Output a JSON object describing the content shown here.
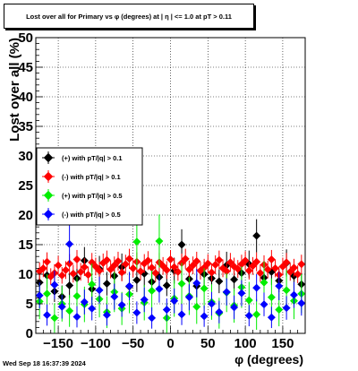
{
  "title": "Lost over all for Primary vs φ (degrees) at | η | <= 1.0 at pT > 0.11",
  "timestamp": "Wed Sep 18 16:37:39 2024",
  "chart_data": {
    "type": "scatter",
    "xlabel": "φ (degrees)",
    "ylabel": "Lost over all (%)",
    "xlim": [
      -180,
      180
    ],
    "ylim": [
      0,
      50
    ],
    "x_ticks": [
      -150,
      -100,
      -50,
      0,
      50,
      100,
      150
    ],
    "y_ticks": [
      0,
      5,
      10,
      15,
      20,
      25,
      30,
      35,
      40,
      45,
      50
    ],
    "grid": true,
    "legend_position": "middle-left",
    "series": [
      {
        "name": "(+) with pT/|q| > 0.1",
        "color": "#000000",
        "marker": "diamond",
        "points": [
          [
            -175,
            8.6,
            2.0
          ],
          [
            -165,
            9.8,
            2.2
          ],
          [
            -155,
            7.1,
            1.8
          ],
          [
            -145,
            6.2,
            1.9
          ],
          [
            -135,
            8.1,
            2.1
          ],
          [
            -125,
            9.3,
            2.0
          ],
          [
            -115,
            12.3,
            2.3
          ],
          [
            -105,
            7.5,
            1.9
          ],
          [
            -95,
            10.9,
            2.2
          ],
          [
            -85,
            8.4,
            2.0
          ],
          [
            -75,
            9.7,
            2.1
          ],
          [
            -65,
            11.2,
            2.3
          ],
          [
            -55,
            7.9,
            1.9
          ],
          [
            -45,
            9.0,
            2.0
          ],
          [
            -35,
            10.1,
            2.2
          ],
          [
            -25,
            8.7,
            2.0
          ],
          [
            -15,
            9.5,
            2.1
          ],
          [
            -5,
            8.1,
            1.8
          ],
          [
            5,
            10.6,
            2.2
          ],
          [
            15,
            15.0,
            2.6
          ],
          [
            25,
            9.2,
            2.0
          ],
          [
            35,
            8.0,
            1.9
          ],
          [
            45,
            10.0,
            2.1
          ],
          [
            55,
            9.3,
            2.0
          ],
          [
            65,
            8.8,
            2.0
          ],
          [
            75,
            11.5,
            2.3
          ],
          [
            85,
            9.1,
            2.0
          ],
          [
            95,
            10.2,
            2.1
          ],
          [
            105,
            11.7,
            2.3
          ],
          [
            115,
            16.5,
            2.8
          ],
          [
            125,
            9.4,
            2.0
          ],
          [
            135,
            10.4,
            2.2
          ],
          [
            145,
            8.9,
            2.0
          ],
          [
            155,
            11.9,
            2.3
          ],
          [
            165,
            9.7,
            2.1
          ],
          [
            175,
            8.3,
            1.9
          ]
        ]
      },
      {
        "name": "(-) with pT/|q| > 0.1",
        "color": "#ff0000",
        "marker": "diamond",
        "points": [
          [
            -175,
            10.5,
            1.5
          ],
          [
            -170,
            11.0,
            1.5
          ],
          [
            -165,
            12.1,
            1.6
          ],
          [
            -160,
            9.6,
            1.4
          ],
          [
            -155,
            10.2,
            1.5
          ],
          [
            -150,
            11.5,
            1.6
          ],
          [
            -145,
            9.8,
            1.4
          ],
          [
            -140,
            10.7,
            1.5
          ],
          [
            -135,
            11.8,
            1.6
          ],
          [
            -130,
            10.1,
            1.5
          ],
          [
            -125,
            12.5,
            1.6
          ],
          [
            -120,
            10.4,
            1.5
          ],
          [
            -115,
            11.2,
            1.5
          ],
          [
            -110,
            9.9,
            1.4
          ],
          [
            -105,
            12.0,
            1.6
          ],
          [
            -100,
            11.3,
            1.5
          ],
          [
            -95,
            10.6,
            1.5
          ],
          [
            -90,
            11.9,
            1.6
          ],
          [
            -85,
            12.4,
            1.6
          ],
          [
            -80,
            10.8,
            1.5
          ],
          [
            -75,
            11.5,
            1.5
          ],
          [
            -70,
            12.2,
            1.6
          ],
          [
            -65,
            10.3,
            1.5
          ],
          [
            -60,
            11.7,
            1.6
          ],
          [
            -55,
            12.6,
            1.7
          ],
          [
            -50,
            11.0,
            1.5
          ],
          [
            -45,
            12.1,
            1.6
          ],
          [
            -40,
            10.5,
            1.5
          ],
          [
            -35,
            11.8,
            1.6
          ],
          [
            -30,
            12.3,
            1.6
          ],
          [
            -25,
            11.1,
            1.5
          ],
          [
            -20,
            10.2,
            1.5
          ],
          [
            -15,
            12.0,
            1.6
          ],
          [
            -10,
            11.4,
            1.5
          ],
          [
            -5,
            10.7,
            1.5
          ],
          [
            0,
            12.5,
            1.6
          ],
          [
            5,
            11.2,
            1.5
          ],
          [
            10,
            10.4,
            1.5
          ],
          [
            15,
            11.9,
            1.6
          ],
          [
            20,
            12.6,
            1.7
          ],
          [
            25,
            10.8,
            1.5
          ],
          [
            30,
            11.5,
            1.5
          ],
          [
            35,
            12.2,
            1.6
          ],
          [
            40,
            10.6,
            1.5
          ],
          [
            45,
            11.1,
            1.5
          ],
          [
            50,
            11.8,
            1.6
          ],
          [
            55,
            10.3,
            1.5
          ],
          [
            60,
            11.6,
            1.6
          ],
          [
            65,
            12.4,
            1.6
          ],
          [
            70,
            11.0,
            1.5
          ],
          [
            75,
            10.5,
            1.5
          ],
          [
            80,
            12.0,
            1.6
          ],
          [
            85,
            11.3,
            1.5
          ],
          [
            90,
            10.9,
            1.5
          ],
          [
            95,
            11.7,
            1.6
          ],
          [
            100,
            12.3,
            1.6
          ],
          [
            105,
            10.6,
            1.5
          ],
          [
            110,
            11.4,
            1.5
          ],
          [
            115,
            12.1,
            1.6
          ],
          [
            120,
            10.2,
            1.5
          ],
          [
            125,
            11.6,
            1.6
          ],
          [
            130,
            10.8,
            1.5
          ],
          [
            135,
            12.5,
            1.6
          ],
          [
            140,
            11.0,
            1.5
          ],
          [
            145,
            9.9,
            1.4
          ],
          [
            150,
            11.3,
            1.5
          ],
          [
            155,
            12.0,
            1.6
          ],
          [
            160,
            10.4,
            1.5
          ],
          [
            165,
            11.1,
            1.5
          ],
          [
            170,
            10.0,
            1.5
          ],
          [
            175,
            11.7,
            1.6
          ]
        ]
      },
      {
        "name": "(+) with pT/|q| > 0.5",
        "color": "#00ee00",
        "marker": "diamond",
        "points": [
          [
            -175,
            5.4,
            3.0
          ],
          [
            -165,
            6.7,
            3.3
          ],
          [
            -155,
            2.6,
            2.5
          ],
          [
            -145,
            5.0,
            3.0
          ],
          [
            -135,
            3.8,
            2.7
          ],
          [
            -125,
            6.3,
            3.2
          ],
          [
            -115,
            4.9,
            3.0
          ],
          [
            -105,
            8.3,
            3.5
          ],
          [
            -95,
            5.8,
            3.1
          ],
          [
            -85,
            3.6,
            2.7
          ],
          [
            -75,
            7.0,
            3.4
          ],
          [
            -65,
            4.2,
            2.8
          ],
          [
            -55,
            6.6,
            3.2
          ],
          [
            -45,
            15.5,
            4.5
          ],
          [
            -35,
            5.2,
            3.0
          ],
          [
            -25,
            7.2,
            3.4
          ],
          [
            -15,
            15.6,
            4.5
          ],
          [
            -5,
            2.6,
            2.5
          ],
          [
            5,
            5.9,
            3.1
          ],
          [
            15,
            8.4,
            3.5
          ],
          [
            25,
            6.3,
            3.2
          ],
          [
            35,
            4.5,
            2.9
          ],
          [
            45,
            7.6,
            3.4
          ],
          [
            55,
            5.3,
            3.0
          ],
          [
            65,
            3.4,
            2.6
          ],
          [
            75,
            6.9,
            3.3
          ],
          [
            85,
            4.7,
            2.9
          ],
          [
            95,
            7.8,
            3.5
          ],
          [
            105,
            5.6,
            3.1
          ],
          [
            115,
            3.2,
            2.6
          ],
          [
            125,
            8.6,
            3.6
          ],
          [
            135,
            6.1,
            3.2
          ],
          [
            145,
            4.0,
            2.8
          ],
          [
            155,
            7.3,
            3.4
          ],
          [
            165,
            5.5,
            3.1
          ],
          [
            175,
            6.7,
            3.3
          ]
        ]
      },
      {
        "name": "(-) with pT/|q| > 0.5",
        "color": "#0000ff",
        "marker": "diamond",
        "points": [
          [
            -175,
            6.4,
            2.2
          ],
          [
            -165,
            3.1,
            1.8
          ],
          [
            -155,
            8.2,
            2.4
          ],
          [
            -145,
            4.5,
            2.0
          ],
          [
            -135,
            15.1,
            3.2
          ],
          [
            -125,
            2.8,
            1.8
          ],
          [
            -115,
            5.3,
            2.1
          ],
          [
            -105,
            4.2,
            2.0
          ],
          [
            -95,
            7.3,
            2.3
          ],
          [
            -85,
            3.1,
            1.8
          ],
          [
            -75,
            6.2,
            2.2
          ],
          [
            -65,
            4.8,
            2.0
          ],
          [
            -55,
            8.0,
            2.4
          ],
          [
            -45,
            3.5,
            1.9
          ],
          [
            -35,
            5.7,
            2.1
          ],
          [
            -25,
            2.6,
            1.8
          ],
          [
            -15,
            7.5,
            2.3
          ],
          [
            -5,
            4.0,
            1.9
          ],
          [
            5,
            5.5,
            2.1
          ],
          [
            15,
            3.2,
            1.8
          ],
          [
            25,
            6.1,
            2.2
          ],
          [
            35,
            8.5,
            2.4
          ],
          [
            45,
            2.9,
            1.8
          ],
          [
            55,
            5.0,
            2.0
          ],
          [
            65,
            3.6,
            1.9
          ],
          [
            75,
            7.0,
            2.3
          ],
          [
            85,
            4.4,
            2.0
          ],
          [
            95,
            6.8,
            2.2
          ],
          [
            105,
            3.0,
            1.8
          ],
          [
            115,
            7.7,
            2.3
          ],
          [
            125,
            4.9,
            2.0
          ],
          [
            135,
            2.7,
            1.8
          ],
          [
            145,
            8.0,
            2.4
          ],
          [
            155,
            4.3,
            2.0
          ],
          [
            165,
            6.5,
            2.2
          ],
          [
            175,
            5.1,
            2.1
          ]
        ]
      }
    ]
  }
}
